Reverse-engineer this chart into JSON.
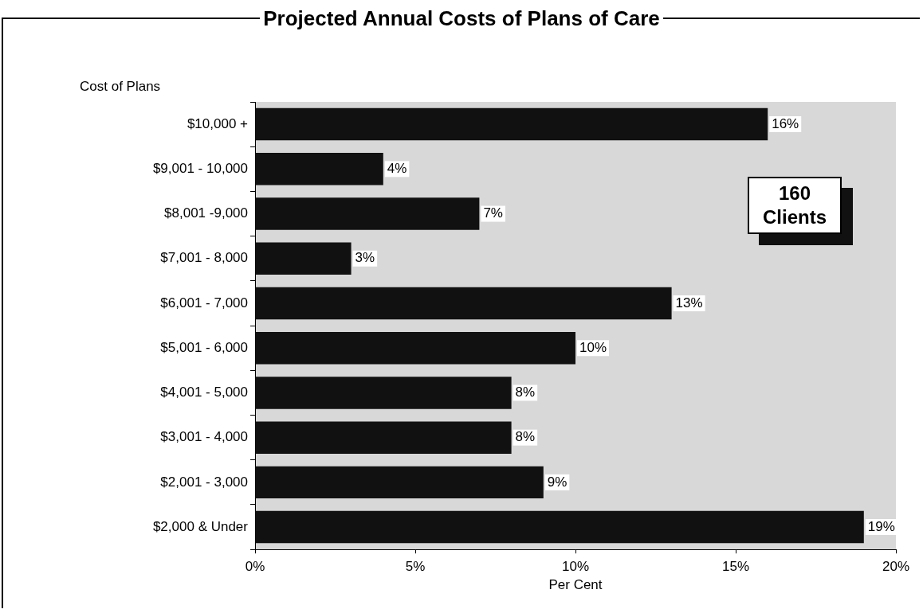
{
  "chart_data": {
    "type": "bar",
    "orientation": "horizontal",
    "title": "Projected Annual Costs of Plans of Care",
    "ylabel": "Cost of Plans",
    "xlabel": "Per Cent",
    "categories": [
      "$10,000 +",
      "$9,001 - 10,000",
      "$8,001 -9,000",
      "$7,001 - 8,000",
      "$6,001 - 7,000",
      "$5,001 - 6,000",
      "$4,001 - 5,000",
      "$3,001 - 4,000",
      "$2,001 - 3,000",
      "$2,000 & Under"
    ],
    "values": [
      16,
      4,
      7,
      3,
      13,
      10,
      8,
      8,
      9,
      19
    ],
    "value_labels": [
      "16%",
      "4%",
      "7%",
      "3%",
      "13%",
      "10%",
      "8%",
      "8%",
      "9%",
      "19%"
    ],
    "color": "#111111",
    "xlim": [
      0,
      20
    ],
    "xticks": [
      {
        "value": 0,
        "label": "0%"
      },
      {
        "value": 5,
        "label": "5%"
      },
      {
        "value": 10,
        "label": "10%"
      },
      {
        "value": 15,
        "label": "15%"
      },
      {
        "value": 20,
        "label": "20%"
      }
    ],
    "grid": false,
    "legend": false,
    "annotations": [
      "160 Clients"
    ]
  }
}
